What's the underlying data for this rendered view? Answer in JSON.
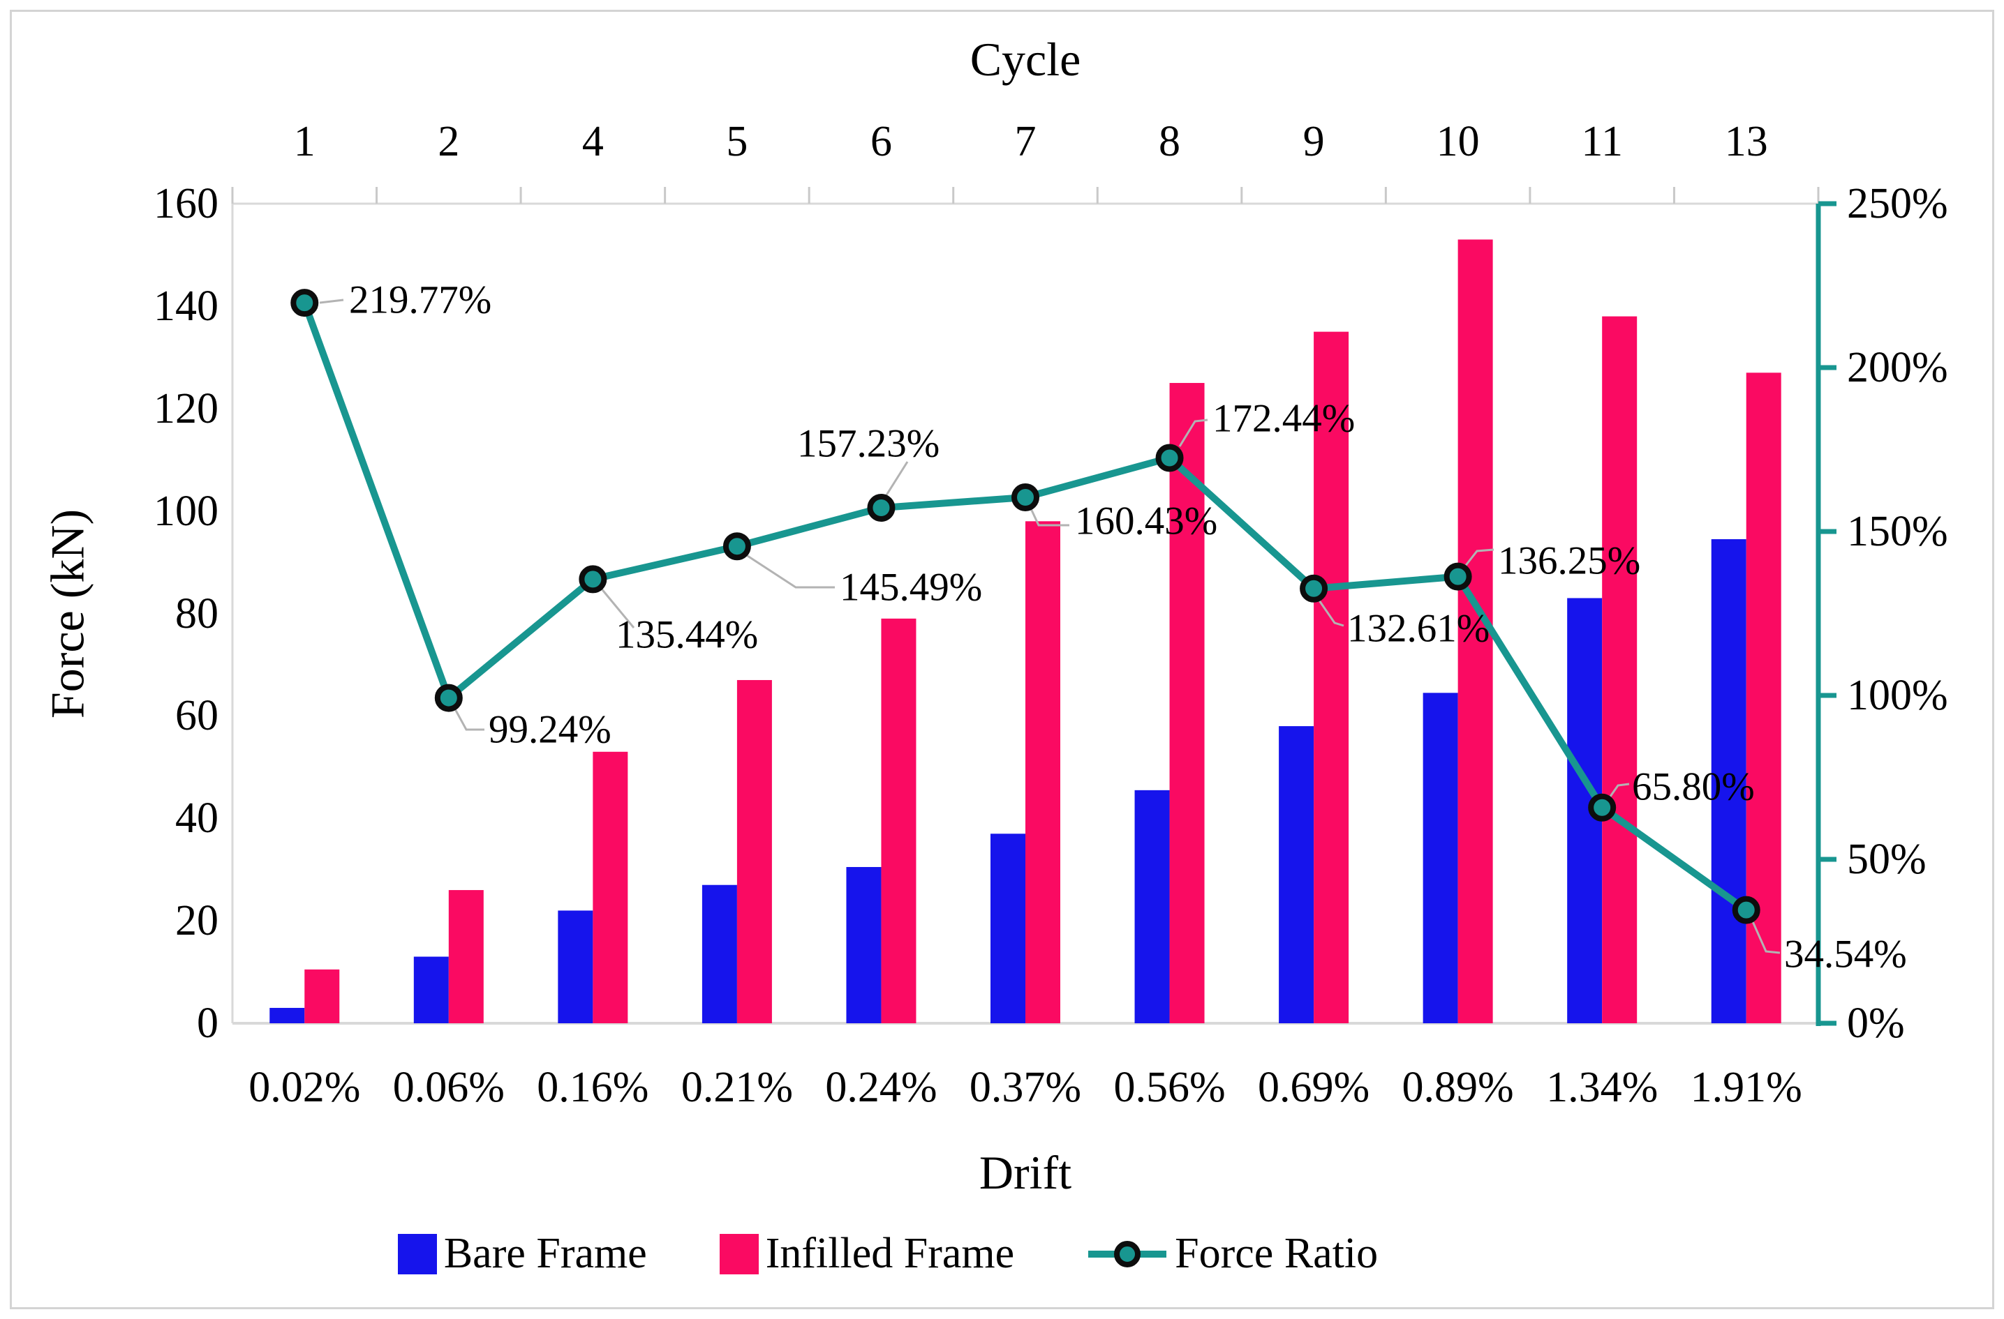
{
  "chart_data": {
    "type": "bar",
    "subtype": "grouped-bars-with-line-overlay",
    "top_axis": {
      "title": "Cycle",
      "tick_labels": [
        "1",
        "2",
        "4",
        "5",
        "6",
        "7",
        "8",
        "9",
        "10",
        "11",
        "13"
      ]
    },
    "x_axis": {
      "title": "Drift",
      "tick_labels": [
        "0.02%",
        "0.06%",
        "0.16%",
        "0.21%",
        "0.24%",
        "0.37%",
        "0.56%",
        "0.69%",
        "0.89%",
        "1.34%",
        "1.91%"
      ]
    },
    "y_left": {
      "title": "Force (kN)",
      "tick_labels": [
        "0",
        "20",
        "40",
        "60",
        "80",
        "100",
        "120",
        "140",
        "160"
      ],
      "range": [
        0,
        160
      ]
    },
    "y_right": {
      "tick_labels": [
        "0%",
        "50%",
        "100%",
        "150%",
        "200%",
        "250%"
      ],
      "range_pct": [
        0,
        250
      ],
      "axis_color": "#189690"
    },
    "series": [
      {
        "name": "Bare Frame",
        "type": "bar",
        "color": "#1614ec",
        "values": [
          3,
          13,
          22,
          27,
          30.5,
          37,
          45.5,
          58,
          64.5,
          83,
          94.5
        ]
      },
      {
        "name": "Infilled Frame",
        "type": "bar",
        "color": "#fa0a62",
        "values": [
          10.5,
          26,
          53,
          67,
          79,
          98,
          125,
          135,
          153,
          138,
          127
        ]
      },
      {
        "name": "Force Ratio",
        "type": "line",
        "color": "#189690",
        "marker": "circle-dark-ring",
        "values_pct": [
          219.77,
          99.24,
          135.44,
          145.49,
          157.23,
          160.43,
          172.44,
          132.61,
          136.25,
          65.8,
          34.54
        ],
        "point_labels": [
          "219.77%",
          "99.24%",
          "135.44%",
          "145.49%",
          "157.23%",
          "160.43%",
          "172.44%",
          "132.61%",
          "136.25%",
          "65.80%",
          "34.54%"
        ]
      }
    ],
    "legend_position": "bottom",
    "grid": false,
    "plot_border_color": "#d9d9d9",
    "leader_line_color": "#b3b3b3"
  }
}
